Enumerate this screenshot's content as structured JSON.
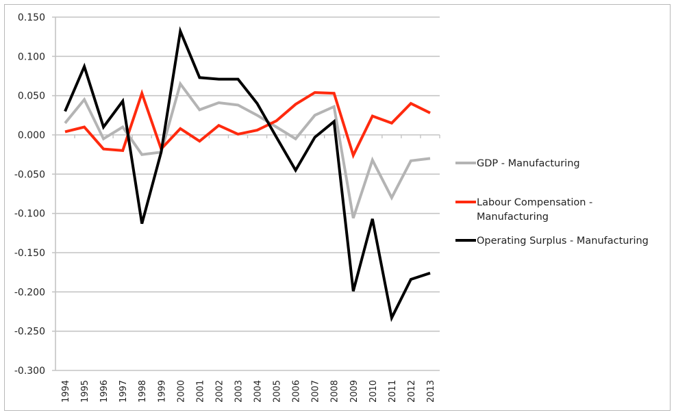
{
  "chart_data": {
    "type": "line",
    "title": "",
    "xlabel": "",
    "ylabel": "",
    "ylim": [
      -0.3,
      0.15
    ],
    "yticks": [
      "0.150",
      "0.100",
      "0.050",
      "0.000",
      "-0.050",
      "-0.100",
      "-0.150",
      "-0.200",
      "-0.250",
      "-0.300"
    ],
    "ytick_values": [
      0.15,
      0.1,
      0.05,
      0,
      -0.05,
      -0.1,
      -0.15,
      -0.2,
      -0.25,
      -0.3
    ],
    "grid": true,
    "legend_position": "right",
    "categories": [
      "1994",
      "1995",
      "1996",
      "1997",
      "1998",
      "1999",
      "2000",
      "2001",
      "2002",
      "2003",
      "2004",
      "2005",
      "2006",
      "2007",
      "2008",
      "2009",
      "2010",
      "2011",
      "2012",
      "2013"
    ],
    "series": [
      {
        "name": "GDP - Manufacturing",
        "legend_lines": [
          "GDP - Manufacturing"
        ],
        "color": "#b4b4b4",
        "values": [
          0.015,
          0.045,
          -0.005,
          0.01,
          -0.025,
          -0.022,
          0.065,
          0.032,
          0.041,
          0.038,
          0.025,
          0.01,
          -0.005,
          0.025,
          0.036,
          -0.106,
          -0.032,
          -0.08,
          -0.033,
          -0.03
        ]
      },
      {
        "name": "Labour Compensation - Manufacturing",
        "legend_lines": [
          "Labour Compensation -",
          "Manufacturing"
        ],
        "color": "#ff2a0e",
        "values": [
          0.004,
          0.01,
          -0.018,
          -0.02,
          0.053,
          -0.018,
          0.008,
          -0.008,
          0.012,
          0.001,
          0.006,
          0.018,
          0.039,
          0.054,
          0.053,
          -0.026,
          0.024,
          0.015,
          0.04,
          0.028
        ]
      },
      {
        "name": "Operating Surplus - Manufacturing",
        "legend_lines": [
          "Operating Surplus - Manufacturing"
        ],
        "color": "#000000",
        "values": [
          0.03,
          0.087,
          0.01,
          0.043,
          -0.113,
          -0.022,
          0.132,
          0.073,
          0.071,
          0.071,
          0.04,
          -0.003,
          -0.045,
          -0.003,
          0.017,
          -0.199,
          -0.107,
          -0.233,
          -0.184,
          -0.176
        ]
      }
    ]
  }
}
